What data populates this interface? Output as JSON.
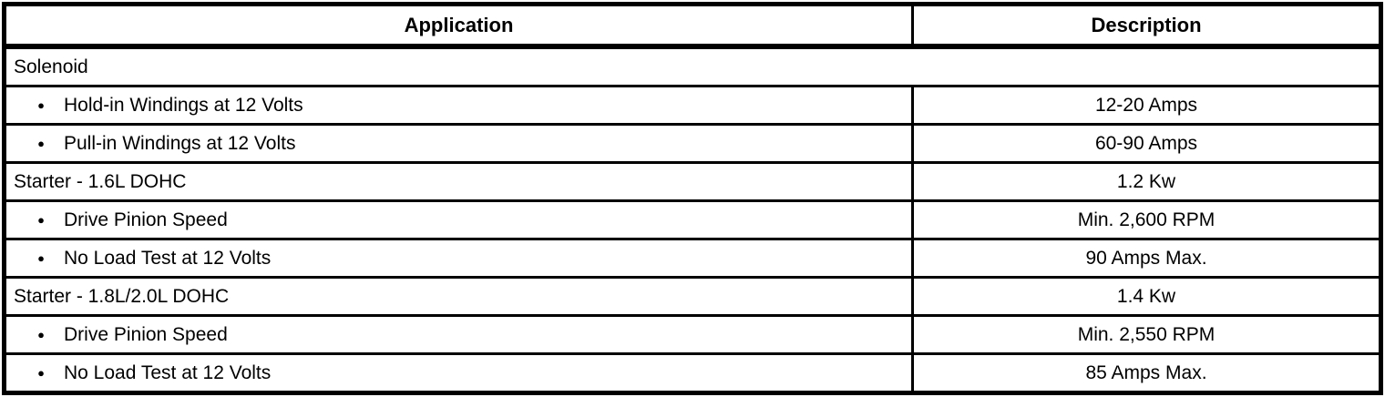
{
  "table": {
    "columns": [
      {
        "label": "Application"
      },
      {
        "label": "Description"
      }
    ],
    "rows": [
      {
        "application": "Solenoid",
        "description": null,
        "bullet": false
      },
      {
        "application": "Hold-in Windings at 12 Volts",
        "description": "12-20 Amps",
        "bullet": true
      },
      {
        "application": "Pull-in Windings at 12 Volts",
        "description": "60-90 Amps",
        "bullet": true
      },
      {
        "application": "Starter - 1.6L DOHC",
        "description": "1.2 Kw",
        "bullet": false
      },
      {
        "application": "Drive Pinion Speed",
        "description": "Min. 2,600 RPM",
        "bullet": true
      },
      {
        "application": "No Load Test at 12 Volts",
        "description": "90 Amps Max.",
        "bullet": true
      },
      {
        "application": "Starter - 1.8L/2.0L DOHC",
        "description": "1.4 Kw",
        "bullet": false
      },
      {
        "application": "Drive Pinion Speed",
        "description": "Min. 2,550 RPM",
        "bullet": true
      },
      {
        "application": "No Load Test at 12 Volts",
        "description": "85 Amps Max.",
        "bullet": true
      }
    ],
    "bullet_glyph": "●",
    "colors": {
      "border": "#000000",
      "text": "#000000",
      "background": "#ffffff"
    }
  }
}
